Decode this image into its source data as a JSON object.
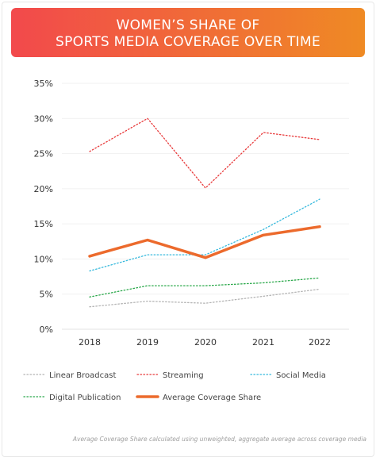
{
  "header": {
    "title_line1": "WOMEN’S SHARE OF",
    "title_line2": "SPORTS MEDIA COVERAGE OVER TIME",
    "gradient_start": "#f2494c",
    "gradient_end": "#ef8a24"
  },
  "chart_data": {
    "type": "line",
    "title": "WOMEN’S SHARE OF SPORTS MEDIA COVERAGE OVER TIME",
    "categories": [
      "2018",
      "2019",
      "2020",
      "2021",
      "2022"
    ],
    "ylim": [
      0,
      35
    ],
    "yticks": [
      0,
      5,
      10,
      15,
      20,
      25,
      30,
      35
    ],
    "ytick_labels": [
      "0%",
      "5%",
      "10%",
      "15%",
      "20%",
      "25%",
      "30%",
      "35%"
    ],
    "grid": "horizontal",
    "legend_position": "bottom",
    "series": [
      {
        "name": "Linear Broadcast",
        "values": [
          3.2,
          4.0,
          3.7,
          4.7,
          5.7
        ],
        "color": "#b4b4b4",
        "style": "dotted"
      },
      {
        "name": "Streaming",
        "values": [
          25.3,
          30.0,
          20.1,
          28.0,
          27.0
        ],
        "color": "#e8393a",
        "style": "dotted"
      },
      {
        "name": "Social Media",
        "values": [
          8.3,
          10.6,
          10.6,
          14.2,
          18.5
        ],
        "color": "#35b9dd",
        "style": "dotted"
      },
      {
        "name": "Digital Publication",
        "values": [
          4.6,
          6.2,
          6.2,
          6.6,
          7.3
        ],
        "color": "#2aa84a",
        "style": "dotted"
      },
      {
        "name": "Average Coverage Share",
        "values": [
          10.4,
          12.7,
          10.2,
          13.4,
          14.6
        ],
        "color": "#ec6a2c",
        "style": "solid"
      }
    ]
  },
  "footnote": "Average Coverage Share calculated using unweighted, aggregate average across coverage media"
}
